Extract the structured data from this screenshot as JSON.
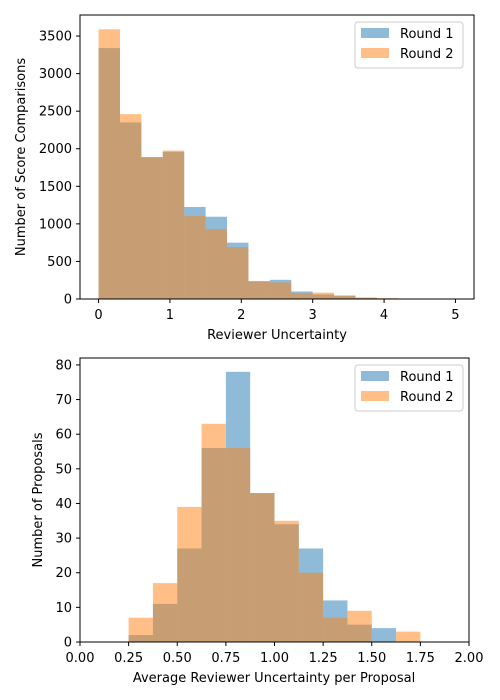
{
  "chart_data": [
    {
      "type": "histogram",
      "xlabel": "Reviewer Uncertainty",
      "ylabel": "Number of Score Comparisons",
      "xlim": [
        -0.26,
        5.26
      ],
      "ylim": [
        0,
        3780
      ],
      "xticks": [
        0,
        1,
        2,
        3,
        4,
        5
      ],
      "yticks": [
        0,
        500,
        1000,
        1500,
        2000,
        2500,
        3000,
        3500
      ],
      "legend_position": "top-right",
      "series": [
        {
          "name": "Round 1",
          "color": "#1f77b4",
          "bin_edges": [
            0,
            0.3,
            0.6,
            0.9,
            1.2,
            1.5,
            1.8,
            2.1,
            2.4,
            2.7,
            3.0,
            3.3,
            3.6,
            3.9,
            4.2,
            4.5,
            4.8,
            5.1
          ],
          "counts": [
            3340,
            2350,
            1890,
            1960,
            1225,
            1095,
            750,
            235,
            255,
            100,
            60,
            40,
            15,
            8,
            4,
            2,
            1
          ]
        },
        {
          "name": "Round 2",
          "color": "#ff7f0e",
          "bin_edges": [
            0,
            0.3,
            0.6,
            0.9,
            1.2,
            1.5,
            1.8,
            2.1,
            2.4,
            2.7,
            3.0,
            3.3,
            3.6,
            3.9,
            4.2
          ],
          "counts": [
            3590,
            2460,
            1880,
            1975,
            1105,
            930,
            690,
            240,
            220,
            80,
            85,
            50,
            20,
            10
          ]
        }
      ]
    },
    {
      "type": "histogram",
      "xlabel": "Average Reviewer Uncertainty per Proposal",
      "ylabel": "Number of Proposals",
      "xlim": [
        0,
        2
      ],
      "ylim": [
        0,
        82
      ],
      "xticks": [
        "0.00",
        "0.25",
        "0.50",
        "0.75",
        "1.00",
        "1.25",
        "1.50",
        "1.75",
        "2.00"
      ],
      "yticks": [
        0,
        10,
        20,
        30,
        40,
        50,
        60,
        70,
        80
      ],
      "legend_position": "top-right",
      "series": [
        {
          "name": "Round 1",
          "color": "#1f77b4",
          "bin_edges": [
            0.25,
            0.375,
            0.5,
            0.625,
            0.75,
            0.875,
            1.0,
            1.125,
            1.25,
            1.375,
            1.5,
            1.625
          ],
          "counts": [
            2,
            11,
            27,
            56,
            78,
            43,
            34,
            27,
            12,
            5,
            4
          ]
        },
        {
          "name": "Round 2",
          "color": "#ff7f0e",
          "bin_edges": [
            0.25,
            0.375,
            0.5,
            0.625,
            0.75,
            0.875,
            1.0,
            1.125,
            1.25,
            1.375,
            1.5,
            1.625,
            1.75
          ],
          "counts": [
            7,
            17,
            39,
            63,
            56,
            43,
            35,
            20,
            7,
            9,
            0,
            3
          ]
        }
      ]
    }
  ]
}
